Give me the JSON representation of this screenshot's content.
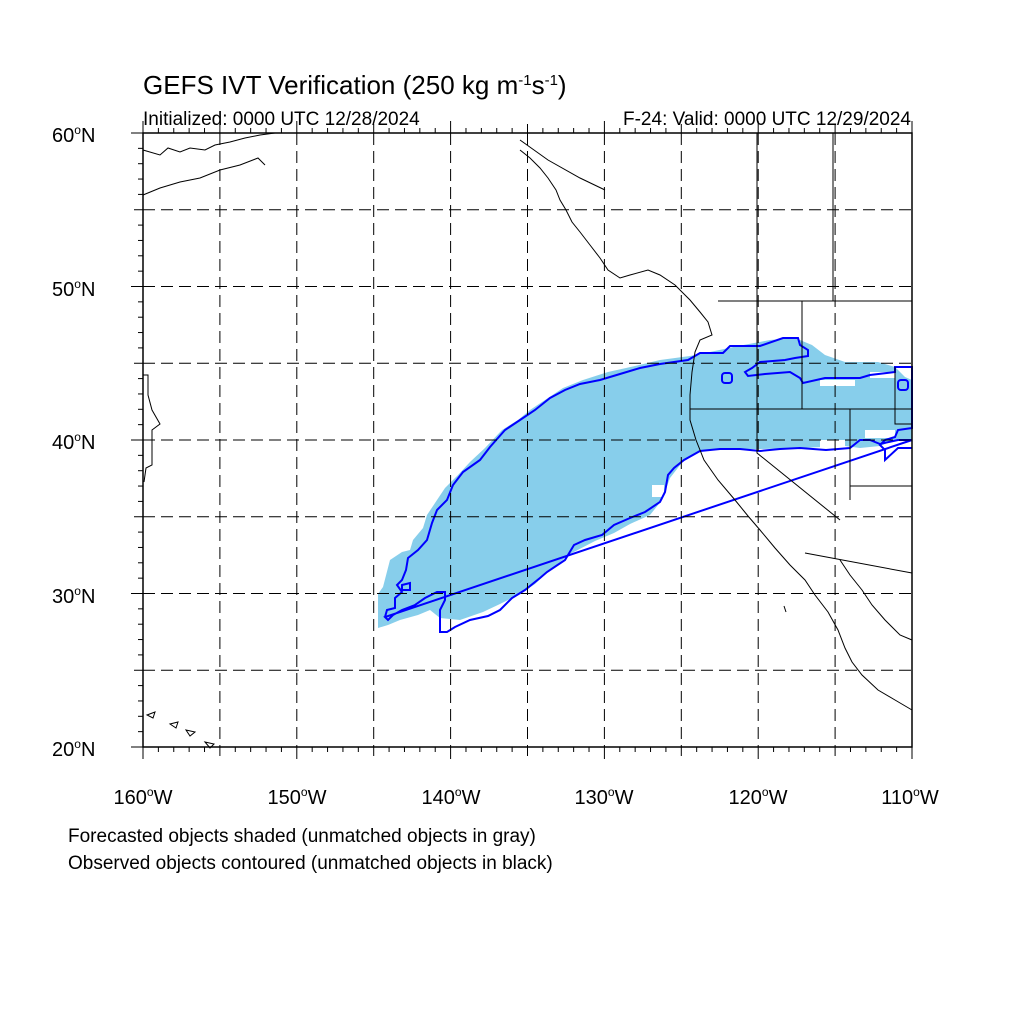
{
  "title": {
    "main": "GEFS IVT Verification (250 kg m",
    "exp1": "-1",
    "mid": "s",
    "exp2": "-1",
    "end": ")"
  },
  "subtitle": {
    "left": "Initialized: 0000 UTC 12/28/2024",
    "right": "F-24: Valid: 0000 UTC 12/29/2024"
  },
  "lat_labels": [
    {
      "num": "60",
      "deg": "o",
      "hemi": "N"
    },
    {
      "num": "50",
      "deg": "o",
      "hemi": "N"
    },
    {
      "num": "40",
      "deg": "o",
      "hemi": "N"
    },
    {
      "num": "30",
      "deg": "o",
      "hemi": "N"
    },
    {
      "num": "20",
      "deg": "o",
      "hemi": "N"
    }
  ],
  "lon_labels": [
    {
      "num": "160",
      "deg": "o",
      "hemi": "W"
    },
    {
      "num": "150",
      "deg": "o",
      "hemi": "W"
    },
    {
      "num": "140",
      "deg": "o",
      "hemi": "W"
    },
    {
      "num": "130",
      "deg": "o",
      "hemi": "W"
    },
    {
      "num": "120",
      "deg": "o",
      "hemi": "W"
    },
    {
      "num": "110",
      "deg": "o",
      "hemi": "W"
    }
  ],
  "notes": {
    "forecast": "Forecasted objects shaded (unmatched objects in gray)",
    "observed": "Observed objects contoured (unmatched objects in black)"
  },
  "map": {
    "lon_range": [
      -160,
      -110
    ],
    "lat_range": [
      20,
      60
    ],
    "grid": "dashed, every 5 degrees",
    "colors": {
      "forecast_fill": "#87ceeb",
      "observed_contour": "#0000ff",
      "coastline": "#000000"
    }
  }
}
